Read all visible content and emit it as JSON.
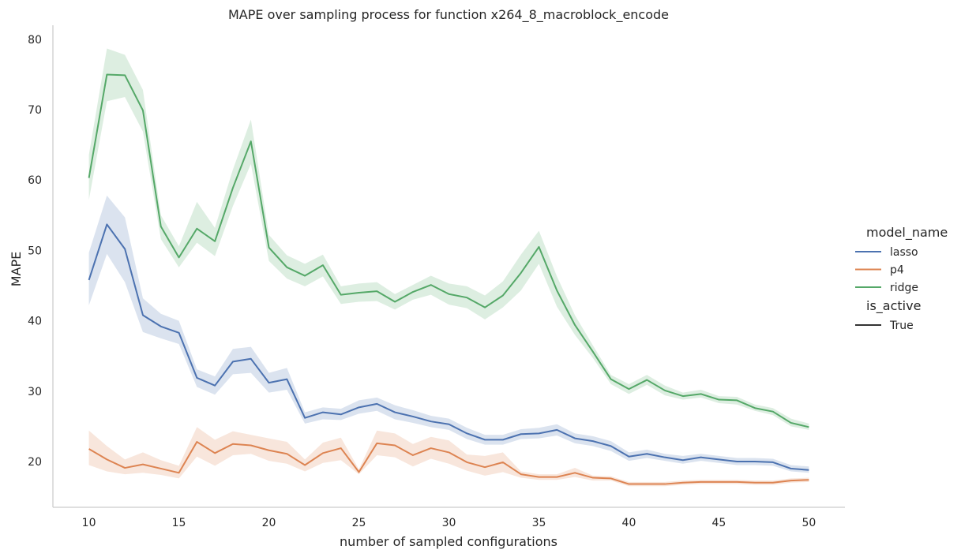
{
  "chart_data": {
    "type": "line",
    "title": "MAPE over sampling process for function x264_8_macroblock_encode",
    "xlabel": "number of sampled configurations",
    "ylabel": "MAPE",
    "xlim": [
      8.0,
      52.0
    ],
    "ylim": [
      13.5,
      82.0
    ],
    "xticks": [
      10,
      15,
      20,
      25,
      30,
      35,
      40,
      45,
      50
    ],
    "yticks": [
      20,
      30,
      40,
      50,
      60,
      70,
      80
    ],
    "grid": false,
    "x": [
      10,
      11,
      12,
      13,
      14,
      15,
      16,
      17,
      18,
      19,
      20,
      21,
      22,
      23,
      24,
      25,
      26,
      27,
      28,
      29,
      30,
      31,
      32,
      33,
      34,
      35,
      36,
      37,
      38,
      39,
      40,
      41,
      42,
      43,
      44,
      45,
      46,
      47,
      48,
      49,
      50
    ],
    "series": [
      {
        "name": "lasso",
        "color": "#4c72b0",
        "values": [
          45.8,
          53.7,
          50.2,
          40.8,
          39.2,
          38.3,
          31.9,
          30.8,
          34.2,
          34.6,
          31.2,
          31.7,
          26.2,
          27.0,
          26.7,
          27.7,
          28.2,
          27.0,
          26.4,
          25.7,
          25.3,
          24.0,
          23.1,
          23.1,
          23.9,
          24.0,
          24.5,
          23.3,
          22.9,
          22.2,
          20.7,
          21.1,
          20.6,
          20.2,
          20.6,
          20.3,
          20.0,
          20.0,
          19.9,
          19.0,
          18.8
        ],
        "ci_low": [
          42.2,
          49.5,
          45.5,
          38.4,
          37.5,
          36.7,
          30.6,
          29.5,
          32.4,
          32.6,
          29.8,
          30.2,
          25.4,
          26.0,
          25.9,
          26.8,
          27.2,
          26.0,
          25.5,
          24.9,
          24.5,
          23.2,
          22.4,
          22.4,
          23.2,
          23.3,
          23.7,
          22.6,
          22.2,
          21.5,
          20.1,
          20.5,
          20.1,
          19.7,
          20.1,
          19.8,
          19.5,
          19.5,
          19.4,
          18.6,
          18.4
        ],
        "ci_high": [
          49.7,
          57.8,
          54.7,
          43.2,
          41.0,
          40.0,
          33.1,
          32.1,
          36.0,
          36.3,
          32.6,
          33.3,
          27.0,
          27.7,
          27.5,
          28.7,
          29.1,
          28.0,
          27.3,
          26.5,
          26.1,
          24.8,
          23.8,
          23.8,
          24.6,
          24.8,
          25.3,
          24.0,
          23.6,
          22.9,
          21.3,
          21.7,
          21.1,
          20.8,
          21.1,
          20.8,
          20.5,
          20.5,
          20.4,
          19.5,
          19.3
        ]
      },
      {
        "name": "p4",
        "color": "#dd8452",
        "values": [
          21.8,
          20.3,
          19.1,
          19.6,
          19.0,
          18.4,
          22.8,
          21.2,
          22.5,
          22.3,
          21.6,
          21.1,
          19.5,
          21.2,
          21.9,
          18.5,
          22.6,
          22.3,
          20.9,
          21.9,
          21.3,
          19.9,
          19.2,
          19.9,
          18.2,
          17.8,
          17.8,
          18.4,
          17.7,
          17.6,
          16.8,
          16.8,
          16.8,
          17.0,
          17.1,
          17.1,
          17.1,
          17.0,
          17.0,
          17.3,
          17.4
        ],
        "ci_low": [
          19.5,
          18.6,
          18.2,
          18.4,
          18.1,
          17.6,
          20.7,
          19.4,
          20.9,
          21.1,
          20.1,
          19.7,
          18.6,
          19.8,
          20.2,
          18.2,
          20.9,
          20.6,
          19.3,
          20.4,
          19.7,
          18.7,
          18.0,
          18.5,
          17.7,
          17.4,
          17.4,
          17.8,
          17.3,
          17.3,
          16.5,
          16.5,
          16.5,
          16.7,
          16.8,
          16.8,
          16.8,
          16.7,
          16.7,
          17.0,
          17.1
        ],
        "ci_high": [
          24.4,
          22.2,
          20.3,
          21.3,
          20.2,
          19.4,
          24.9,
          23.1,
          24.3,
          23.8,
          23.3,
          22.8,
          20.3,
          22.7,
          23.4,
          18.9,
          24.4,
          24.0,
          22.5,
          23.5,
          23.0,
          21.0,
          20.8,
          21.3,
          18.6,
          18.2,
          18.2,
          19.1,
          18.0,
          17.9,
          17.1,
          17.1,
          17.1,
          17.3,
          17.4,
          17.4,
          17.4,
          17.3,
          17.3,
          17.6,
          17.7
        ]
      },
      {
        "name": "ridge",
        "color": "#55a868",
        "values": [
          60.3,
          75.0,
          74.9,
          69.9,
          53.4,
          49.0,
          53.1,
          51.3,
          58.9,
          65.5,
          50.4,
          47.6,
          46.4,
          47.9,
          43.7,
          44.0,
          44.2,
          42.7,
          44.1,
          45.1,
          43.8,
          43.3,
          41.9,
          43.6,
          46.8,
          50.5,
          44.3,
          39.4,
          35.6,
          31.7,
          30.3,
          31.6,
          30.1,
          29.3,
          29.6,
          28.8,
          28.7,
          27.6,
          27.1,
          25.5,
          24.9
        ],
        "ci_low": [
          57.2,
          71.2,
          71.8,
          66.9,
          51.6,
          47.6,
          51.1,
          49.2,
          56.3,
          62.3,
          48.5,
          46.0,
          44.9,
          46.3,
          42.4,
          42.7,
          42.8,
          41.6,
          43.0,
          43.7,
          42.3,
          41.8,
          40.2,
          41.9,
          44.3,
          48.1,
          42.0,
          38.0,
          34.7,
          31.0,
          29.6,
          30.9,
          29.4,
          28.8,
          29.1,
          28.3,
          28.1,
          27.2,
          26.6,
          25.0,
          24.5
        ],
        "ci_high": [
          63.6,
          78.7,
          77.8,
          72.8,
          55.0,
          50.6,
          56.9,
          53.2,
          61.5,
          68.6,
          52.2,
          49.3,
          48.1,
          49.4,
          44.9,
          45.3,
          45.5,
          43.8,
          45.1,
          46.4,
          45.3,
          44.9,
          43.6,
          45.6,
          49.4,
          52.8,
          46.3,
          40.8,
          36.5,
          32.3,
          31.0,
          32.3,
          30.8,
          29.8,
          30.2,
          29.3,
          29.2,
          28.1,
          27.6,
          26.1,
          25.4
        ]
      }
    ],
    "legend": {
      "placement": "right",
      "hue_title": "model_name",
      "hue_entries": [
        "lasso",
        "p4",
        "ridge"
      ],
      "style_title": "is_active",
      "style_entries": [
        "True"
      ]
    }
  }
}
